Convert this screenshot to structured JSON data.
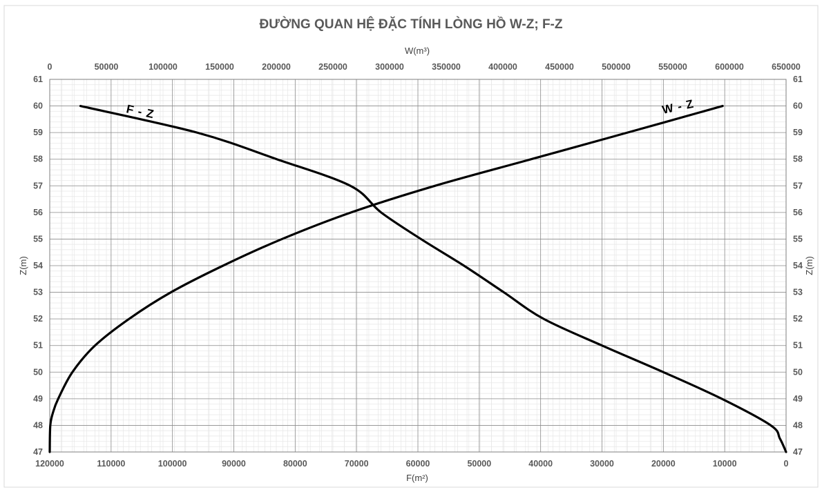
{
  "chart_data": {
    "type": "line",
    "title": "ĐƯỜNG QUAN HỆ ĐẶC TÍNH LÒNG HỒ W-Z; F-Z",
    "top_axis": {
      "label": "W(m³)",
      "min": 0,
      "max": 650000,
      "step": 50000,
      "ticks": [
        "0",
        "50000",
        "100000",
        "150000",
        "200000",
        "250000",
        "300000",
        "350000",
        "400000",
        "450000",
        "500000",
        "550000",
        "600000",
        "650000"
      ]
    },
    "bottom_axis": {
      "label": "F(m²)",
      "min": 0,
      "max": 120000,
      "step": 10000,
      "reversed": true,
      "ticks": [
        "120000",
        "110000",
        "100000",
        "90000",
        "80000",
        "70000",
        "60000",
        "50000",
        "40000",
        "30000",
        "20000",
        "10000",
        "0"
      ]
    },
    "y_axis": {
      "label_left": "Z(m)",
      "label_right": "Z(m)",
      "min": 47,
      "max": 61,
      "step": 1,
      "ticks": [
        "47",
        "48",
        "49",
        "50",
        "51",
        "52",
        "53",
        "54",
        "55",
        "56",
        "57",
        "58",
        "59",
        "60",
        "61"
      ]
    },
    "grid": {
      "major": true,
      "minor": true
    },
    "series": [
      {
        "name": "W - Z",
        "x_axis": "top",
        "points": [
          [
            0,
            47
          ],
          [
            500,
            48
          ],
          [
            3000,
            48.5
          ],
          [
            7500,
            49
          ],
          [
            20000,
            50
          ],
          [
            40000,
            51
          ],
          [
            70000,
            52
          ],
          [
            107000,
            53
          ],
          [
            153000,
            54
          ],
          [
            205000,
            55
          ],
          [
            266000,
            56
          ],
          [
            340000,
            57
          ],
          [
            425000,
            58
          ],
          [
            510000,
            59
          ],
          [
            594000,
            60
          ]
        ]
      },
      {
        "name": "F - Z",
        "x_axis": "bottom",
        "points": [
          [
            0,
            47
          ],
          [
            1000,
            47.5
          ],
          [
            2500,
            48
          ],
          [
            10500,
            49
          ],
          [
            20000,
            50
          ],
          [
            30000,
            51
          ],
          [
            39500,
            52
          ],
          [
            46000,
            53
          ],
          [
            52500,
            54
          ],
          [
            59500,
            55
          ],
          [
            66000,
            56
          ],
          [
            71000,
            57
          ],
          [
            83000,
            58
          ],
          [
            96000,
            59
          ],
          [
            115000,
            60
          ]
        ]
      }
    ]
  }
}
